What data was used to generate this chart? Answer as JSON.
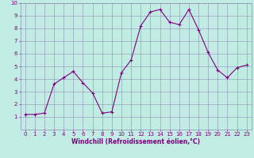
{
  "x": [
    0,
    1,
    2,
    3,
    4,
    5,
    6,
    7,
    8,
    9,
    10,
    11,
    12,
    13,
    14,
    15,
    16,
    17,
    18,
    19,
    20,
    21,
    22,
    23
  ],
  "y": [
    1.2,
    1.2,
    1.3,
    3.6,
    4.1,
    4.6,
    3.7,
    2.9,
    1.3,
    1.4,
    4.5,
    5.5,
    8.2,
    9.3,
    9.5,
    8.5,
    8.3,
    9.5,
    7.9,
    6.1,
    4.7,
    4.1,
    4.9,
    5.1
  ],
  "line_color": "#800080",
  "marker": "+",
  "marker_color": "#800080",
  "bg_color": "#c0ece4",
  "grid_color": "#9090b0",
  "xlabel": "Windchill (Refroidissement éolien,°C)",
  "xlabel_color": "#800080",
  "tick_color": "#800080",
  "ylim": [
    0,
    10
  ],
  "xlim": [
    -0.5,
    23.5
  ],
  "yticks": [
    1,
    2,
    3,
    4,
    5,
    6,
    7,
    8,
    9,
    10
  ],
  "xticks": [
    0,
    1,
    2,
    3,
    4,
    5,
    6,
    7,
    8,
    9,
    10,
    11,
    12,
    13,
    14,
    15,
    16,
    17,
    18,
    19,
    20,
    21,
    22,
    23
  ],
  "linewidth": 0.8,
  "markersize": 3.5,
  "tick_fontsize": 5.0,
  "xlabel_fontsize": 5.5
}
